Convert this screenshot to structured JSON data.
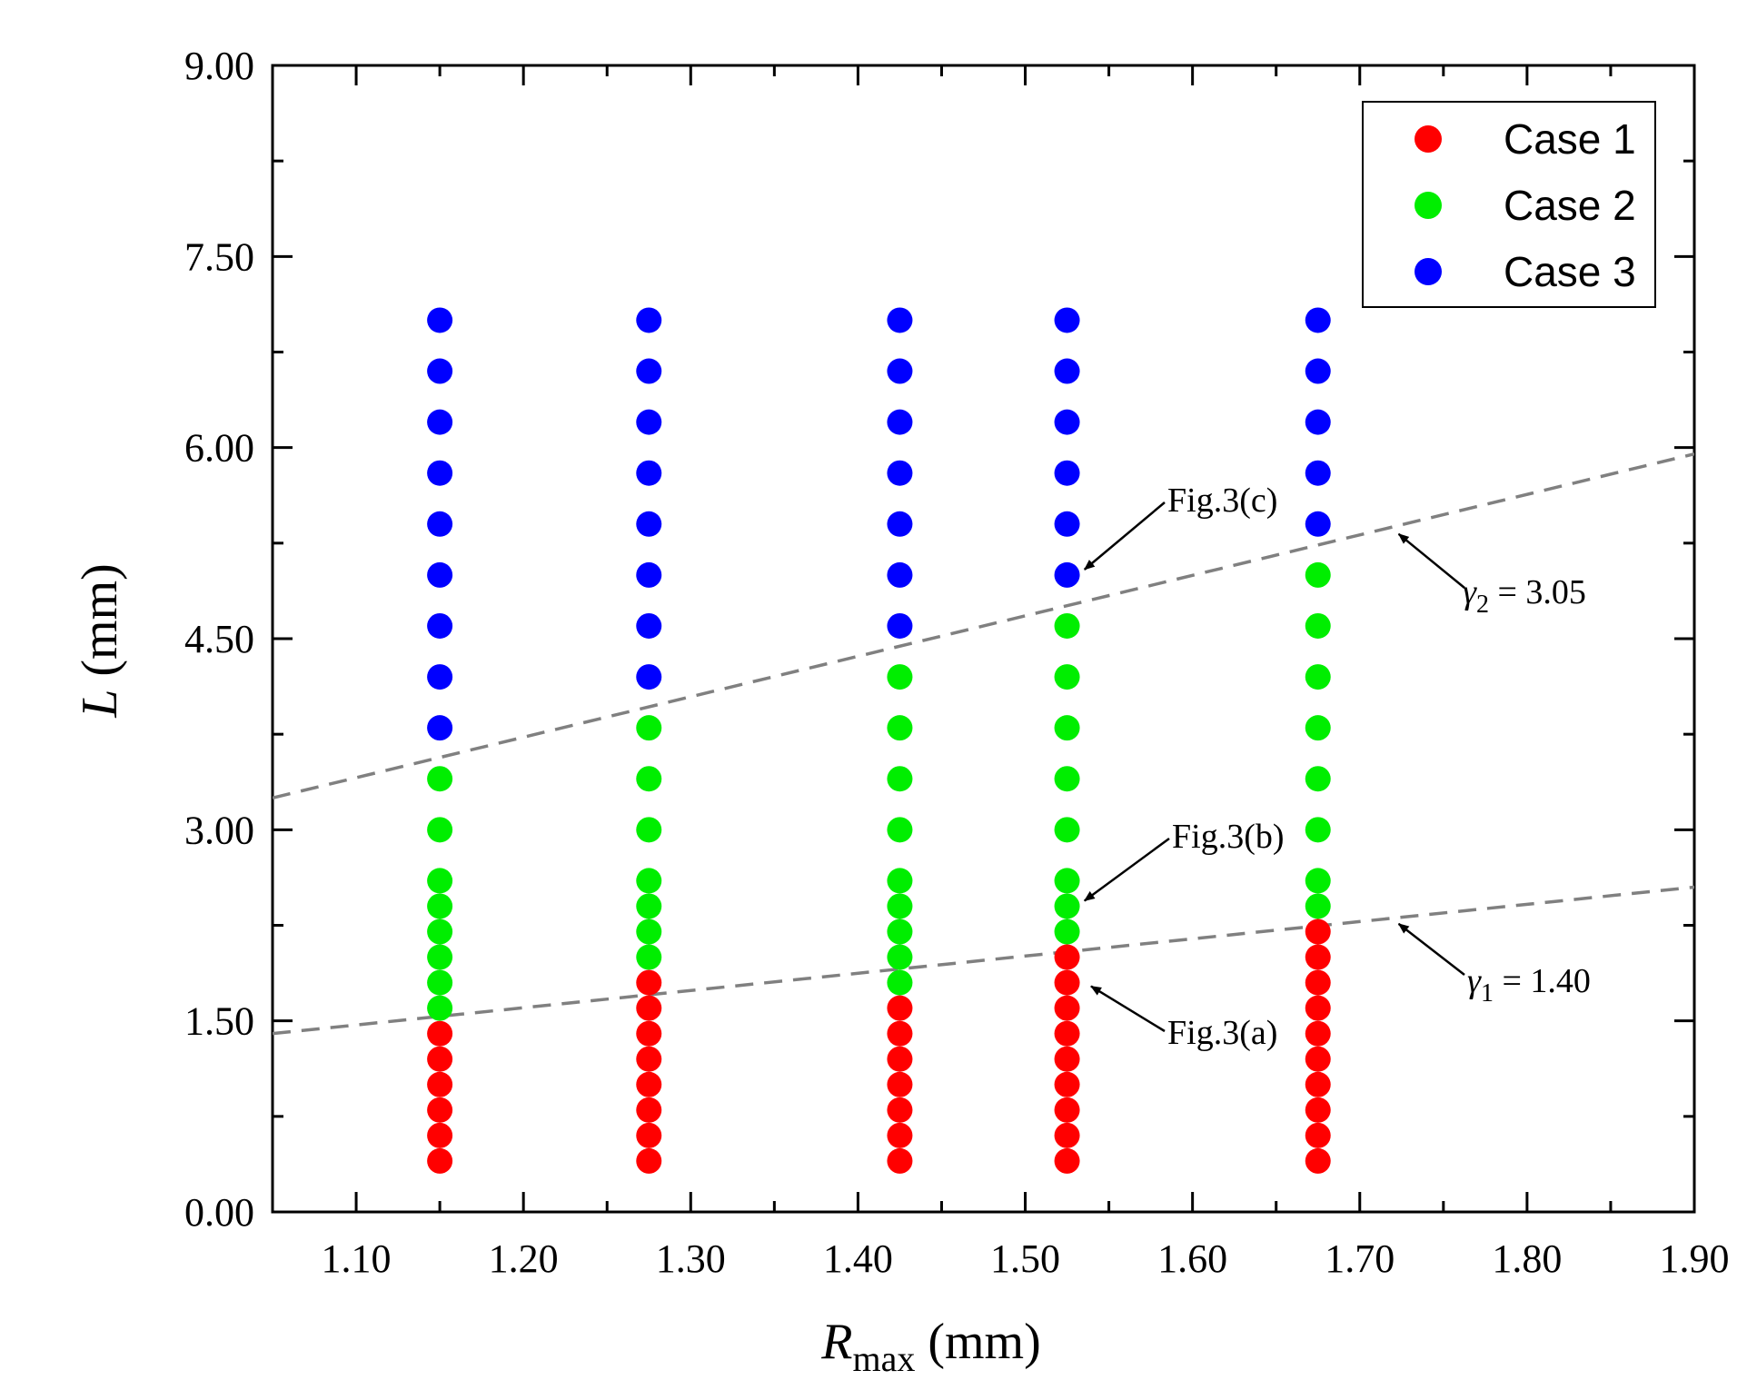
{
  "chart_data": {
    "type": "scatter",
    "xlabel": {
      "symbol": "R",
      "subscript": "max",
      "unit": " (mm)"
    },
    "ylabel": {
      "symbol": "L",
      "unit": " (mm)"
    },
    "xlim": [
      1.05,
      1.9
    ],
    "ylim": [
      0,
      9
    ],
    "x_ticks": [
      "1.10",
      "1.20",
      "1.30",
      "1.40",
      "1.50",
      "1.60",
      "1.70",
      "1.80",
      "1.90"
    ],
    "y_ticks": [
      "0.00",
      "1.50",
      "3.00",
      "4.50",
      "6.00",
      "7.50",
      "9.00"
    ],
    "legend_position": "top-right",
    "series": [
      {
        "name": "Case 1",
        "color": "#ff0000",
        "points": [
          [
            1.15,
            0.4
          ],
          [
            1.15,
            0.6
          ],
          [
            1.15,
            0.8
          ],
          [
            1.15,
            1.0
          ],
          [
            1.15,
            1.2
          ],
          [
            1.15,
            1.4
          ],
          [
            1.275,
            0.4
          ],
          [
            1.275,
            0.6
          ],
          [
            1.275,
            0.8
          ],
          [
            1.275,
            1.0
          ],
          [
            1.275,
            1.2
          ],
          [
            1.275,
            1.4
          ],
          [
            1.275,
            1.6
          ],
          [
            1.275,
            1.8
          ],
          [
            1.425,
            0.4
          ],
          [
            1.425,
            0.6
          ],
          [
            1.425,
            0.8
          ],
          [
            1.425,
            1.0
          ],
          [
            1.425,
            1.2
          ],
          [
            1.425,
            1.4
          ],
          [
            1.425,
            1.6
          ],
          [
            1.525,
            0.4
          ],
          [
            1.525,
            0.6
          ],
          [
            1.525,
            0.8
          ],
          [
            1.525,
            1.0
          ],
          [
            1.525,
            1.2
          ],
          [
            1.525,
            1.4
          ],
          [
            1.525,
            1.6
          ],
          [
            1.525,
            1.8
          ],
          [
            1.525,
            2.0
          ],
          [
            1.675,
            0.4
          ],
          [
            1.675,
            0.6
          ],
          [
            1.675,
            0.8
          ],
          [
            1.675,
            1.0
          ],
          [
            1.675,
            1.2
          ],
          [
            1.675,
            1.4
          ],
          [
            1.675,
            1.6
          ],
          [
            1.675,
            1.8
          ],
          [
            1.675,
            2.0
          ],
          [
            1.675,
            2.2
          ]
        ]
      },
      {
        "name": "Case 2",
        "color": "#00ee00",
        "points": [
          [
            1.15,
            1.6
          ],
          [
            1.15,
            1.8
          ],
          [
            1.15,
            2.0
          ],
          [
            1.15,
            2.2
          ],
          [
            1.15,
            2.4
          ],
          [
            1.15,
            2.6
          ],
          [
            1.15,
            3.0
          ],
          [
            1.15,
            3.4
          ],
          [
            1.275,
            2.0
          ],
          [
            1.275,
            2.2
          ],
          [
            1.275,
            2.4
          ],
          [
            1.275,
            2.6
          ],
          [
            1.275,
            3.0
          ],
          [
            1.275,
            3.4
          ],
          [
            1.275,
            3.8
          ],
          [
            1.425,
            1.8
          ],
          [
            1.425,
            2.0
          ],
          [
            1.425,
            2.2
          ],
          [
            1.425,
            2.4
          ],
          [
            1.425,
            2.6
          ],
          [
            1.425,
            3.0
          ],
          [
            1.425,
            3.4
          ],
          [
            1.425,
            3.8
          ],
          [
            1.425,
            4.2
          ],
          [
            1.525,
            2.2
          ],
          [
            1.525,
            2.4
          ],
          [
            1.525,
            2.6
          ],
          [
            1.525,
            3.0
          ],
          [
            1.525,
            3.4
          ],
          [
            1.525,
            3.8
          ],
          [
            1.525,
            4.2
          ],
          [
            1.525,
            4.6
          ],
          [
            1.675,
            2.4
          ],
          [
            1.675,
            2.6
          ],
          [
            1.675,
            3.0
          ],
          [
            1.675,
            3.4
          ],
          [
            1.675,
            3.8
          ],
          [
            1.675,
            4.2
          ],
          [
            1.675,
            4.6
          ],
          [
            1.675,
            5.0
          ]
        ]
      },
      {
        "name": "Case 3",
        "color": "#0000ff",
        "points": [
          [
            1.15,
            3.8
          ],
          [
            1.15,
            4.2
          ],
          [
            1.15,
            4.6
          ],
          [
            1.15,
            5.0
          ],
          [
            1.15,
            5.4
          ],
          [
            1.15,
            5.8
          ],
          [
            1.15,
            6.2
          ],
          [
            1.15,
            6.6
          ],
          [
            1.15,
            7.0
          ],
          [
            1.275,
            4.2
          ],
          [
            1.275,
            4.6
          ],
          [
            1.275,
            5.0
          ],
          [
            1.275,
            5.4
          ],
          [
            1.275,
            5.8
          ],
          [
            1.275,
            6.2
          ],
          [
            1.275,
            6.6
          ],
          [
            1.275,
            7.0
          ],
          [
            1.425,
            4.6
          ],
          [
            1.425,
            5.0
          ],
          [
            1.425,
            5.4
          ],
          [
            1.425,
            5.8
          ],
          [
            1.425,
            6.2
          ],
          [
            1.425,
            6.6
          ],
          [
            1.425,
            7.0
          ],
          [
            1.525,
            5.0
          ],
          [
            1.525,
            5.4
          ],
          [
            1.525,
            5.8
          ],
          [
            1.525,
            6.2
          ],
          [
            1.525,
            6.6
          ],
          [
            1.525,
            7.0
          ],
          [
            1.675,
            5.4
          ],
          [
            1.675,
            5.8
          ],
          [
            1.675,
            6.2
          ],
          [
            1.675,
            6.6
          ],
          [
            1.675,
            7.0
          ]
        ]
      }
    ],
    "reference_lines": [
      {
        "name": "gamma1",
        "symbol": "γ",
        "subscript": "1",
        "value_text": " = 1.40",
        "x": [
          1.05,
          1.9
        ],
        "y": [
          1.4,
          2.55
        ],
        "arrow_to": [
          1.72,
          2.29
        ],
        "color": "#808080"
      },
      {
        "name": "gamma2",
        "symbol": "γ",
        "subscript": "2",
        "value_text": " = 3.05",
        "x": [
          1.05,
          1.9
        ],
        "y": [
          3.25,
          5.95
        ],
        "arrow_to": [
          1.72,
          5.35
        ],
        "color": "#808080"
      }
    ],
    "annotations": [
      {
        "text": "Fig.3(c)",
        "arrow_to": [
          1.53,
          5.0
        ]
      },
      {
        "text": "Fig.3(b)",
        "arrow_to": [
          1.53,
          2.4
        ]
      },
      {
        "text": "Fig.3(a)",
        "arrow_to": [
          1.535,
          1.8
        ]
      }
    ]
  }
}
